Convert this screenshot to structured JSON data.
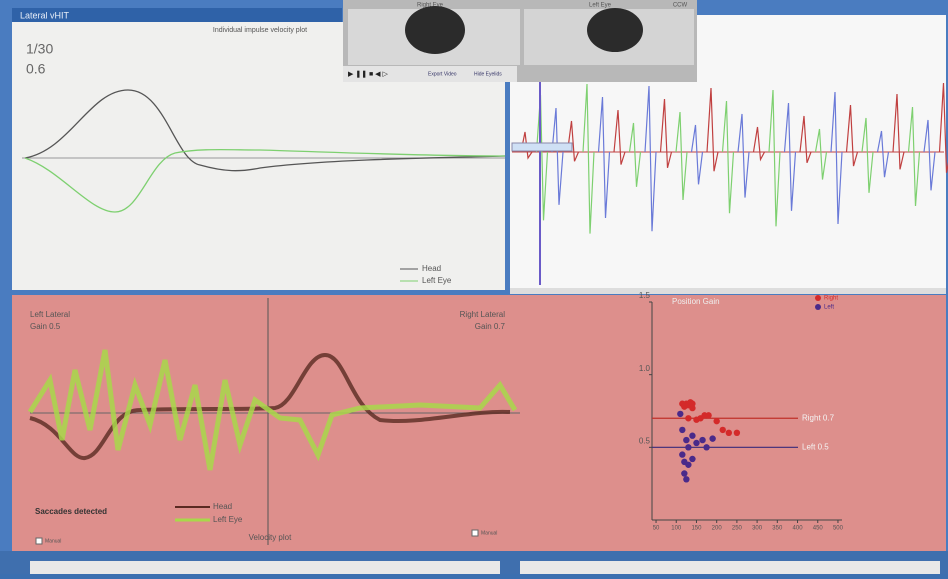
{
  "tab": "Lateral vHIT",
  "impulse_plot": {
    "title": "Individual impulse velocity plot",
    "counter": "1/30",
    "gain": "0.6",
    "legend": [
      "Head",
      "Left Eye"
    ]
  },
  "video": {
    "right_eye": "Right Eye",
    "left_eye": "Left Eye",
    "eye_label": "CCW",
    "buttons": [
      "Export Video",
      "Hide Eyelids"
    ]
  },
  "velocity_plot": {
    "title": "Velocity plot",
    "left_label": "Left Lateral",
    "left_gain": "Gain 0.5",
    "right_label": "Right Lateral",
    "right_gain": "Gain 0.7",
    "saccades": "Saccades detected",
    "legend": [
      "Head",
      "Left Eye"
    ],
    "manual": [
      "Manual",
      "Manual"
    ]
  },
  "gain_plot": {
    "type": "scatter",
    "title": "Position Gain",
    "xlim": [
      40,
      510
    ],
    "ylim": [
      0,
      1.5
    ],
    "xticks": [
      50,
      100,
      150,
      200,
      250,
      300,
      350,
      400,
      450,
      500
    ],
    "yticks": [
      0.5,
      {
        "value": 1,
        "label": "1.0"
      },
      1.5
    ],
    "series": [
      {
        "name": "Right",
        "color": "#d42a2a",
        "x": [
          115,
          120,
          125,
          130,
          135,
          140,
          130,
          150,
          160,
          170,
          180,
          200,
          215,
          230,
          250,
          140
        ],
        "y": [
          0.8,
          0.78,
          0.8,
          0.79,
          0.81,
          0.77,
          0.7,
          0.69,
          0.7,
          0.72,
          0.72,
          0.68,
          0.62,
          0.6,
          0.6,
          0.8
        ]
      },
      {
        "name": "Left",
        "color": "#4a2a8a",
        "x": [
          110,
          115,
          125,
          130,
          115,
          120,
          130,
          140,
          150,
          165,
          175,
          190,
          120,
          125,
          140
        ],
        "y": [
          0.73,
          0.62,
          0.55,
          0.5,
          0.45,
          0.4,
          0.38,
          0.42,
          0.53,
          0.55,
          0.5,
          0.56,
          0.32,
          0.28,
          0.58
        ]
      }
    ],
    "reference_lines": [
      {
        "label": "Right 0.7",
        "value": 0.7,
        "color": "#c0302a"
      },
      {
        "label": "Left 0.5",
        "value": 0.5,
        "color": "#3a2a7a"
      }
    ]
  }
}
